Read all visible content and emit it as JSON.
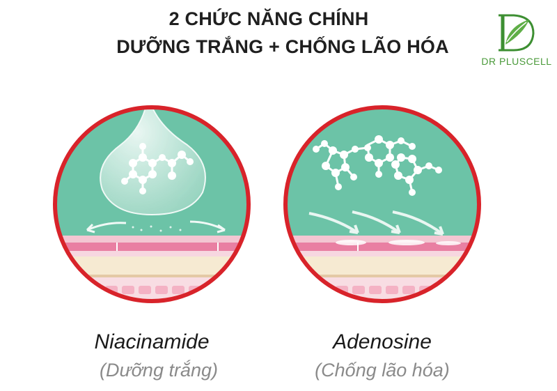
{
  "header": {
    "line1": "2 CHỨC NĂNG CHÍNH",
    "line2": "DƯỠNG TRẮNG + CHỐNG LÃO HÓA"
  },
  "brand": {
    "name": "DR PLUSCELL",
    "color": "#4a9a3a"
  },
  "colors": {
    "ring": "#d8232a",
    "water": "#6cc3a7",
    "skin_pink": "#f5b8c8",
    "skin_cream": "#f6ead2"
  },
  "ingredients": [
    {
      "name": "Niacinamide",
      "function": "(Dưỡng trắng)"
    },
    {
      "name": "Adenosine",
      "function": "(Chống lão hóa)"
    }
  ]
}
